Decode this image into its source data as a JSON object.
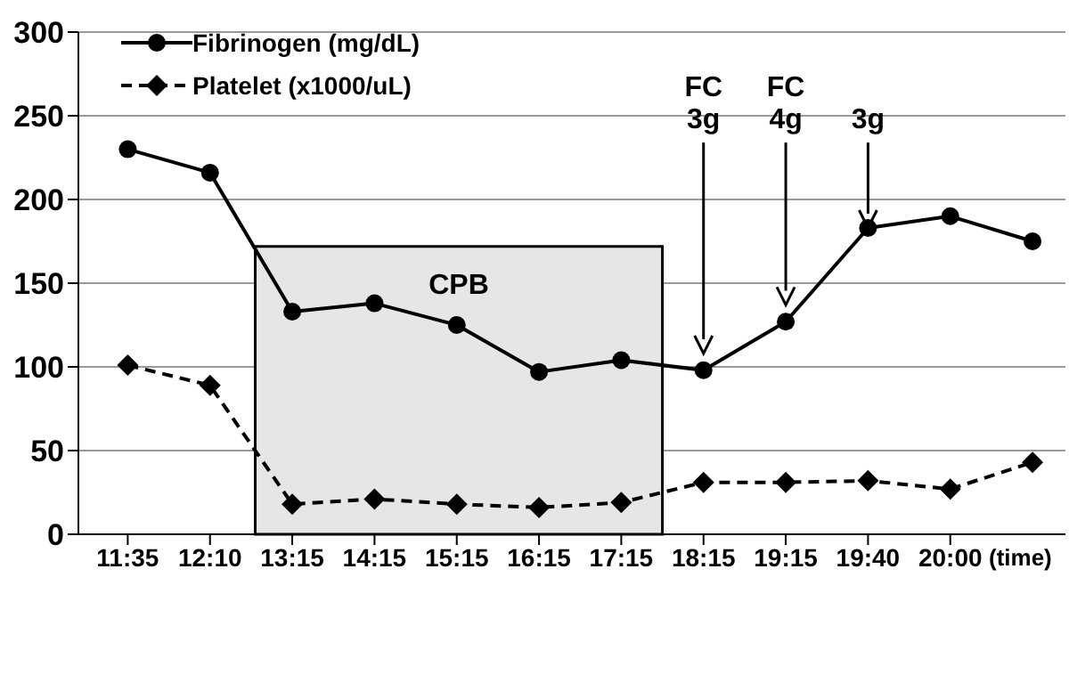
{
  "chart_data": {
    "type": "line",
    "xlabel": "(time)",
    "categories": [
      "11:35",
      "12:10",
      "13:15",
      "14:15",
      "15:15",
      "16:15",
      "17:15",
      "18:15",
      "19:15",
      "19:40",
      "20:00",
      null
    ],
    "series": [
      {
        "name": "Fibrinogen (mg/dL)",
        "color": "#000000",
        "marker": "circle",
        "line_style": "solid",
        "values": [
          230,
          216,
          133,
          138,
          125,
          97,
          104,
          98,
          127,
          183,
          190,
          175
        ]
      },
      {
        "name": "Platelet (x1000/uL)",
        "color": "#000000",
        "marker": "diamond",
        "line_style": "dashed",
        "values": [
          101,
          89,
          18,
          21,
          18,
          16,
          19,
          31,
          31,
          32,
          27,
          43
        ]
      }
    ],
    "ylim": [
      0,
      300
    ],
    "yticks": [
      0,
      50,
      100,
      150,
      200,
      250,
      300
    ],
    "grid": "y",
    "legend": "top left",
    "bands": [
      {
        "axis": "x",
        "from": "13:15",
        "to": "17:15",
        "label": "CPB",
        "color": "#e6e6e6"
      }
    ],
    "annotations": [
      {
        "text": "FC 3g",
        "x": "18:15",
        "y": 108
      },
      {
        "text": "FC 4g",
        "x": "19:15",
        "y": 137
      },
      {
        "text": "3g",
        "x": "19:40",
        "y": 183
      }
    ]
  }
}
